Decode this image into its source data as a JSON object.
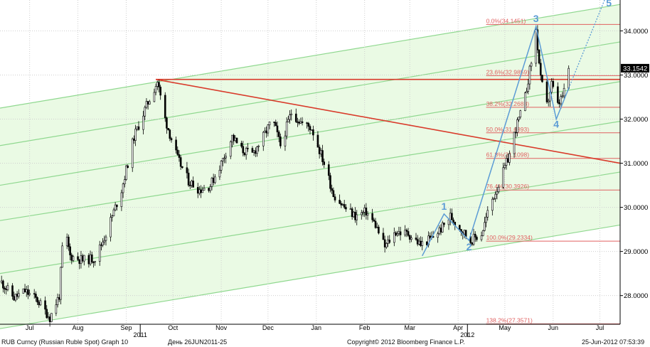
{
  "chart_data": {
    "type": "candlestick",
    "title": "",
    "xlabel": "",
    "ylabel": "",
    "ylim": [
      27.35,
      34.7
    ],
    "x_range": [
      "2011-06-26",
      "2012-07-28"
    ],
    "y_ticks": [
      "28.0000",
      "29.0000",
      "30.0000",
      "31.0000",
      "32.0000",
      "33.0000",
      "34.0000"
    ],
    "x_ticks": [
      {
        "label": "Jul",
        "date": "2011-07-15"
      },
      {
        "label": "Aug",
        "date": "2011-08-15"
      },
      {
        "label": "Sep",
        "date": "2011-09-15"
      },
      {
        "label": "Oct",
        "date": "2011-10-15"
      },
      {
        "label": "Nov",
        "date": "2011-11-15"
      },
      {
        "label": "Dec",
        "date": "2011-12-15"
      },
      {
        "label": "Jan",
        "date": "2012-01-15"
      },
      {
        "label": "Feb",
        "date": "2012-02-15"
      },
      {
        "label": "Mar",
        "date": "2012-03-15"
      },
      {
        "label": "Apr",
        "date": "2012-04-15"
      },
      {
        "label": "May",
        "date": "2012-05-15"
      },
      {
        "label": "Jun",
        "date": "2012-06-15"
      },
      {
        "label": "Jul",
        "date": "2012-07-15"
      }
    ],
    "year_labels": [
      {
        "label": "2011",
        "date": "2011-09-24"
      },
      {
        "label": "2012",
        "date": "2012-04-21"
      }
    ],
    "last_price": {
      "label": "33.1542",
      "value": 33.1542
    },
    "price_path": [
      [
        "2011-06-27",
        28.3
      ],
      [
        "2011-07-05",
        27.95
      ],
      [
        "2011-07-12",
        28.1
      ],
      [
        "2011-07-20",
        27.9
      ],
      [
        "2011-07-28",
        27.5
      ],
      [
        "2011-08-03",
        28.0
      ],
      [
        "2011-08-06",
        29.6
      ],
      [
        "2011-08-10",
        28.9
      ],
      [
        "2011-08-18",
        28.8
      ],
      [
        "2011-08-26",
        28.85
      ],
      [
        "2011-09-02",
        29.4
      ],
      [
        "2011-09-12",
        30.4
      ],
      [
        "2011-09-20",
        31.6
      ],
      [
        "2011-09-28",
        32.3
      ],
      [
        "2011-10-05",
        32.85
      ],
      [
        "2011-10-10",
        32.0
      ],
      [
        "2011-10-18",
        31.1
      ],
      [
        "2011-10-25",
        30.6
      ],
      [
        "2011-11-01",
        30.4
      ],
      [
        "2011-11-08",
        30.5
      ],
      [
        "2011-11-15",
        31.0
      ],
      [
        "2011-11-22",
        31.6
      ],
      [
        "2011-11-28",
        31.3
      ],
      [
        "2011-12-05",
        31.2
      ],
      [
        "2011-12-12",
        31.6
      ],
      [
        "2011-12-18",
        32.0
      ],
      [
        "2011-12-23",
        31.4
      ],
      [
        "2011-12-30",
        32.15
      ],
      [
        "2012-01-06",
        31.9
      ],
      [
        "2012-01-12",
        31.8
      ],
      [
        "2012-01-20",
        31.0
      ],
      [
        "2012-01-26",
        30.3
      ],
      [
        "2012-02-02",
        30.0
      ],
      [
        "2012-02-09",
        29.8
      ],
      [
        "2012-02-16",
        29.9
      ],
      [
        "2012-02-22",
        29.6
      ],
      [
        "2012-02-28",
        29.1
      ],
      [
        "2012-03-06",
        29.45
      ],
      [
        "2012-03-14",
        29.4
      ],
      [
        "2012-03-22",
        29.15
      ],
      [
        "2012-03-29",
        29.3
      ],
      [
        "2012-04-05",
        29.55
      ],
      [
        "2012-04-10",
        29.8
      ],
      [
        "2012-04-17",
        29.5
      ],
      [
        "2012-04-23",
        29.25
      ],
      [
        "2012-04-30",
        29.4
      ],
      [
        "2012-05-06",
        30.1
      ],
      [
        "2012-05-12",
        30.6
      ],
      [
        "2012-05-18",
        31.2
      ],
      [
        "2012-05-22",
        31.8
      ],
      [
        "2012-05-27",
        32.3
      ],
      [
        "2012-06-01",
        33.3
      ],
      [
        "2012-06-04",
        34.0
      ],
      [
        "2012-06-07",
        32.9
      ],
      [
        "2012-06-11",
        32.3
      ],
      [
        "2012-06-14",
        32.8
      ],
      [
        "2012-06-18",
        32.3
      ],
      [
        "2012-06-22",
        32.6
      ],
      [
        "2012-06-25",
        33.15
      ]
    ],
    "fibonacci": {
      "start_date": "2012-05-03",
      "end_date": "2012-07-28",
      "levels": [
        {
          "label": "0.0%(34.1451)",
          "value": 34.1451
        },
        {
          "label": "23.6%(32.9859)",
          "value": 32.9859
        },
        {
          "label": "38.2%(32.2688)",
          "value": 32.2688
        },
        {
          "label": "50.0%(31.6893)",
          "value": 31.6893
        },
        {
          "label": "61.8%(31.1098)",
          "value": 31.1098
        },
        {
          "label": "76.4%(30.3926)",
          "value": 30.3926
        },
        {
          "label": "100.0%(29.2334)",
          "value": 29.2334
        },
        {
          "label": "138.2%(27.3571)",
          "value": 27.3571
        }
      ]
    },
    "resistance_line": {
      "start": [
        "2011-10-04",
        32.9
      ],
      "end": [
        "2012-07-28",
        32.9
      ]
    },
    "trend_line": {
      "start": [
        "2011-10-04",
        32.9
      ],
      "end": [
        "2012-07-28",
        31.0
      ]
    },
    "channel": {
      "lines": [
        [
          [
            "2011-06-26",
            32.25
          ],
          [
            "2012-07-28",
            34.6
          ]
        ],
        [
          [
            "2011-06-26",
            31.4
          ],
          [
            "2012-07-28",
            33.75
          ]
        ],
        [
          [
            "2011-06-26",
            30.5
          ],
          [
            "2012-07-28",
            32.85
          ]
        ],
        [
          [
            "2011-06-26",
            29.7
          ],
          [
            "2012-07-28",
            31.95
          ]
        ],
        [
          [
            "2011-06-26",
            28.5
          ],
          [
            "2012-07-28",
            30.8
          ]
        ],
        [
          [
            "2011-06-26",
            27.25
          ],
          [
            "2012-07-28",
            29.6
          ]
        ]
      ],
      "color": "#8fd88f",
      "fill": "#eafae4"
    },
    "waves": {
      "color": "#5b9bd5",
      "points": [
        {
          "label": "",
          "date": "2012-03-23",
          "value": 28.9
        },
        {
          "label": "1",
          "date": "2012-04-06",
          "value": 29.85
        },
        {
          "label": "2",
          "date": "2012-04-22",
          "value": 29.25
        },
        {
          "label": "3",
          "date": "2012-06-04",
          "value": 34.1
        },
        {
          "label": "4",
          "date": "2012-06-17",
          "value": 32.0
        },
        {
          "label": "",
          "date": "2012-06-25",
          "value": 32.7
        }
      ],
      "projection": {
        "label": "5",
        "date": "2012-07-18",
        "value": 34.7
      }
    }
  },
  "footer": {
    "left": "RUB Curncy (Russian Ruble Spot) Graph 10",
    "period": "День 26JUN2011-25",
    "copyright": "Copyright© 2012 Bloomberg Finance L.P.",
    "timestamp": "25-Jun-2012 07:53:39"
  },
  "colors": {
    "candle": "#000000",
    "fib": "#e06060",
    "trend": "#d93b2b",
    "grid": "#cfcfcf"
  }
}
